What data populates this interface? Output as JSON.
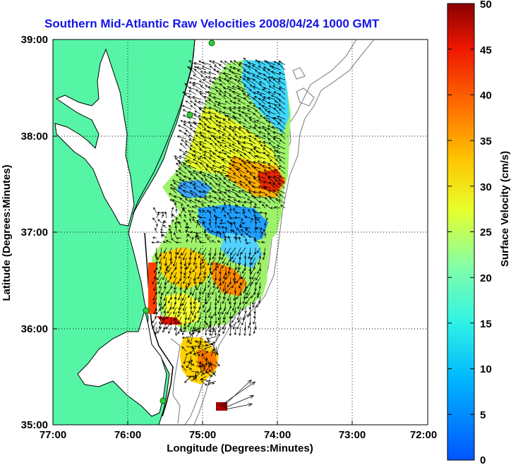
{
  "title": "Southern Mid-Atlantic Raw Velocities 2008/04/24 1000 GMT",
  "x_axis": {
    "label": "Longitude (Degrees:Minutes)",
    "ticks": [
      "77:00",
      "76:00",
      "75:00",
      "74:00",
      "73:00",
      "72:00"
    ]
  },
  "y_axis": {
    "label": "Latitude (Degrees:Minutes)",
    "ticks": [
      "39:00",
      "38:00",
      "37:00",
      "36:00",
      "35:00"
    ]
  },
  "colorbar": {
    "label": "Surface Velocity (cm/s)",
    "ticks": [
      "50",
      "45",
      "40",
      "35",
      "30",
      "25",
      "20",
      "15",
      "10",
      "5",
      "0"
    ],
    "range": [
      0,
      50
    ]
  },
  "colors": {
    "title": "#1414e6",
    "land": "#55f5a5",
    "water": "#ffffff",
    "grid": "#000000",
    "arrows": "#000000",
    "bathymetry": "#888888"
  }
}
